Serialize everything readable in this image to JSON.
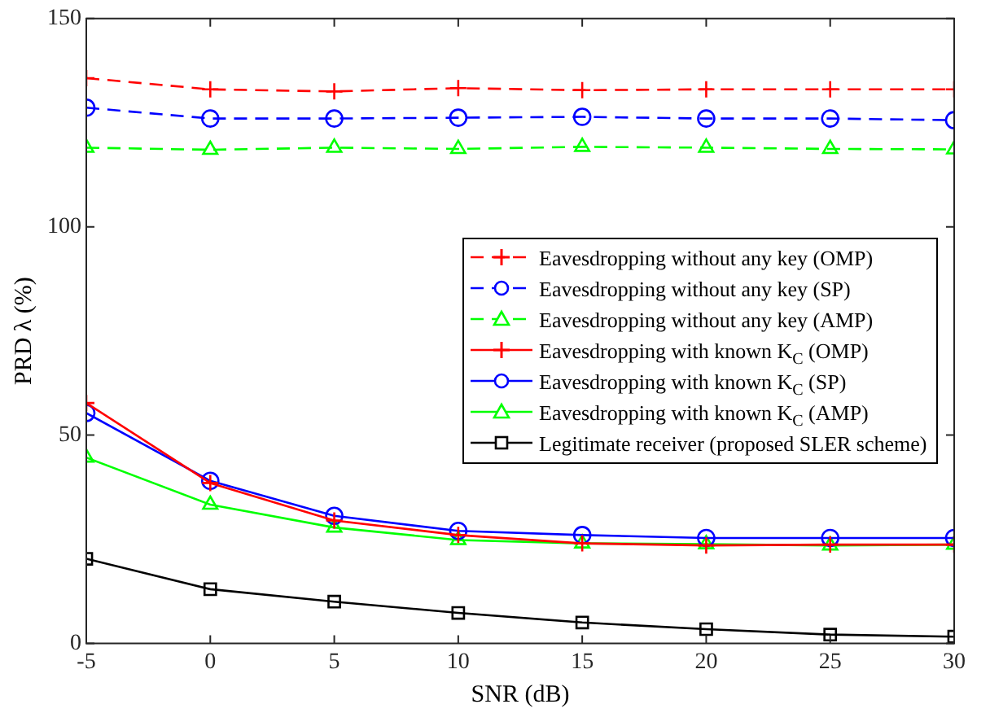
{
  "chart_data": {
    "type": "line",
    "xlabel": "SNR (dB)",
    "ylabel": "PRD λ (%)",
    "x": [
      -5,
      0,
      5,
      10,
      15,
      20,
      25,
      30
    ],
    "xlim": [
      -5,
      30
    ],
    "xticks": [
      -5,
      0,
      5,
      10,
      15,
      20,
      25,
      30
    ],
    "ylim": [
      0,
      150
    ],
    "yticks": [
      0,
      50,
      100,
      150
    ],
    "grid": false,
    "legend": "right",
    "series": [
      {
        "name": "Eavesdropping without any key (OMP)",
        "color": "#ff0000",
        "marker": "cross",
        "line_style": "dashed",
        "values": [
          135.7,
          133,
          132.5,
          133.3,
          132.8,
          133,
          133,
          133
        ]
      },
      {
        "name": "Eavesdropping without any key (SP)",
        "color": "#0000ff",
        "marker": "circle",
        "line_style": "dashed",
        "values": [
          128.6,
          126,
          126,
          126.2,
          126.4,
          126,
          126,
          125.6
        ]
      },
      {
        "name": "Eavesdropping without any key (AMP)",
        "color": "#00ff00",
        "marker": "triangle",
        "line_style": "dashed",
        "values": [
          119,
          118.5,
          119,
          118.7,
          119.2,
          119,
          118.7,
          118.6
        ]
      },
      {
        "name": "Eavesdropping with known K$_{C}$ (OMP)",
        "color": "#ff0000",
        "marker": "cross",
        "line_style": "solid",
        "values": [
          57.7,
          38.5,
          29.5,
          26,
          24,
          23.5,
          23.7,
          23.7
        ]
      },
      {
        "name": "Eavesdropping with known K$_{C}$ (SP)",
        "color": "#0000ff",
        "marker": "circle",
        "line_style": "solid",
        "values": [
          55.3,
          39,
          30.6,
          27,
          26,
          25.3,
          25.3,
          25.3
        ]
      },
      {
        "name": "Eavesdropping with known K$_{C}$ (AMP)",
        "color": "#00ff00",
        "marker": "triangle",
        "line_style": "solid",
        "values": [
          44.6,
          33.3,
          27.8,
          24.8,
          24,
          23.8,
          23.5,
          23.7
        ]
      },
      {
        "name": "Legitimate receiver (proposed SLER scheme)",
        "color": "#000000",
        "marker": "square",
        "line_style": "solid",
        "values": [
          20.3,
          13,
          10,
          7.3,
          5,
          3.4,
          2.1,
          1.6
        ]
      }
    ]
  }
}
